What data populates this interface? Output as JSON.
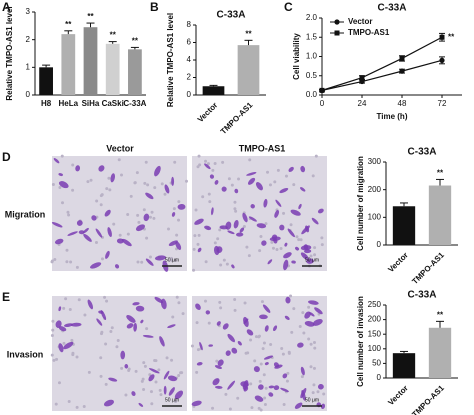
{
  "figure": {
    "panel_letters": [
      "A",
      "B",
      "C",
      "D",
      "E"
    ],
    "columns": [
      "Vector",
      "TMPO-AS1"
    ],
    "rows": [
      "Migration",
      "Invasion"
    ],
    "scale_bars": [
      "50 μm",
      "50 μm",
      "50 μm",
      "50 μm"
    ]
  },
  "chart_data": [
    {
      "type": "bar",
      "ylabel": "Relative TMPO-AS1 level",
      "categories": [
        "H8",
        "HeLa",
        "SiHa",
        "CaSki",
        "C-33A"
      ],
      "values": [
        1.0,
        2.2,
        2.45,
        1.85,
        1.65
      ],
      "errors": [
        0.08,
        0.12,
        0.15,
        0.08,
        0.07
      ],
      "annotations": [
        null,
        "**",
        "**",
        "**",
        "**"
      ],
      "colors": [
        "#111111",
        "#b0b0b0",
        "#8a8a8a",
        "#d0d0d0",
        "#9a9a9a"
      ],
      "ylim": [
        0,
        3
      ],
      "yticks": [
        0,
        1,
        2,
        3
      ],
      "rotate_labels": false
    },
    {
      "type": "bar",
      "title": "C-33A",
      "ylabel": "Relative TMPO-AS1 level",
      "categories": [
        "Vector",
        "TMPO-AS1"
      ],
      "values": [
        1.0,
        5.7
      ],
      "errors": [
        0.1,
        0.55
      ],
      "annotations": [
        null,
        "**"
      ],
      "colors": [
        "#111111",
        "#b0b0b0"
      ],
      "ylim": [
        0,
        8
      ],
      "yticks": [
        0,
        2,
        4,
        6,
        8
      ],
      "rotate_labels": true
    },
    {
      "type": "line",
      "title": "C-33A",
      "xlabel": "Time (h)",
      "ylabel": "Cell viability",
      "x": [
        0,
        24,
        48,
        72
      ],
      "series": [
        {
          "name": "Vector",
          "color": "#111111",
          "marker": "circle",
          "values": [
            0.12,
            0.35,
            0.62,
            0.9
          ],
          "errors": [
            0.02,
            0.04,
            0.05,
            0.09
          ]
        },
        {
          "name": "TMPO-AS1",
          "color": "#111111",
          "marker": "square",
          "values": [
            0.12,
            0.45,
            0.95,
            1.5
          ],
          "errors": [
            0.02,
            0.05,
            0.07,
            0.1
          ],
          "annotation": "**"
        }
      ],
      "xlim": [
        0,
        84
      ],
      "xticks": [
        0,
        24,
        48,
        72
      ],
      "ylim": [
        0,
        2
      ],
      "yticks": [
        {
          "value": 0,
          "label": "0.0"
        },
        {
          "value": 0.5,
          "label": "0.5"
        },
        {
          "value": 1,
          "label": "1.0"
        },
        {
          "value": 1.5,
          "label": "1.5"
        },
        {
          "value": 2,
          "label": "2.0"
        }
      ],
      "legend": "upper left"
    },
    {
      "type": "bar",
      "title": "C-33A",
      "ylabel": "Cell number of migration",
      "categories": [
        "Vector",
        "TMPO-AS1"
      ],
      "values": [
        140,
        215
      ],
      "errors": [
        12,
        22
      ],
      "annotations": [
        null,
        "**"
      ],
      "colors": [
        "#111111",
        "#b0b0b0"
      ],
      "ylim": [
        0,
        300
      ],
      "yticks": [
        0,
        100,
        200,
        300
      ],
      "rotate_labels": true
    },
    {
      "type": "bar",
      "title": "C-33A",
      "ylabel": "Cell number of invasion",
      "categories": [
        "Vector",
        "TMPO-AS1"
      ],
      "values": [
        85,
        172
      ],
      "errors": [
        6,
        22
      ],
      "annotations": [
        null,
        "**"
      ],
      "colors": [
        "#111111",
        "#b0b0b0"
      ],
      "ylim": [
        0,
        250
      ],
      "yticks": [
        0,
        50,
        100,
        150,
        200,
        250
      ],
      "rotate_labels": true
    }
  ]
}
